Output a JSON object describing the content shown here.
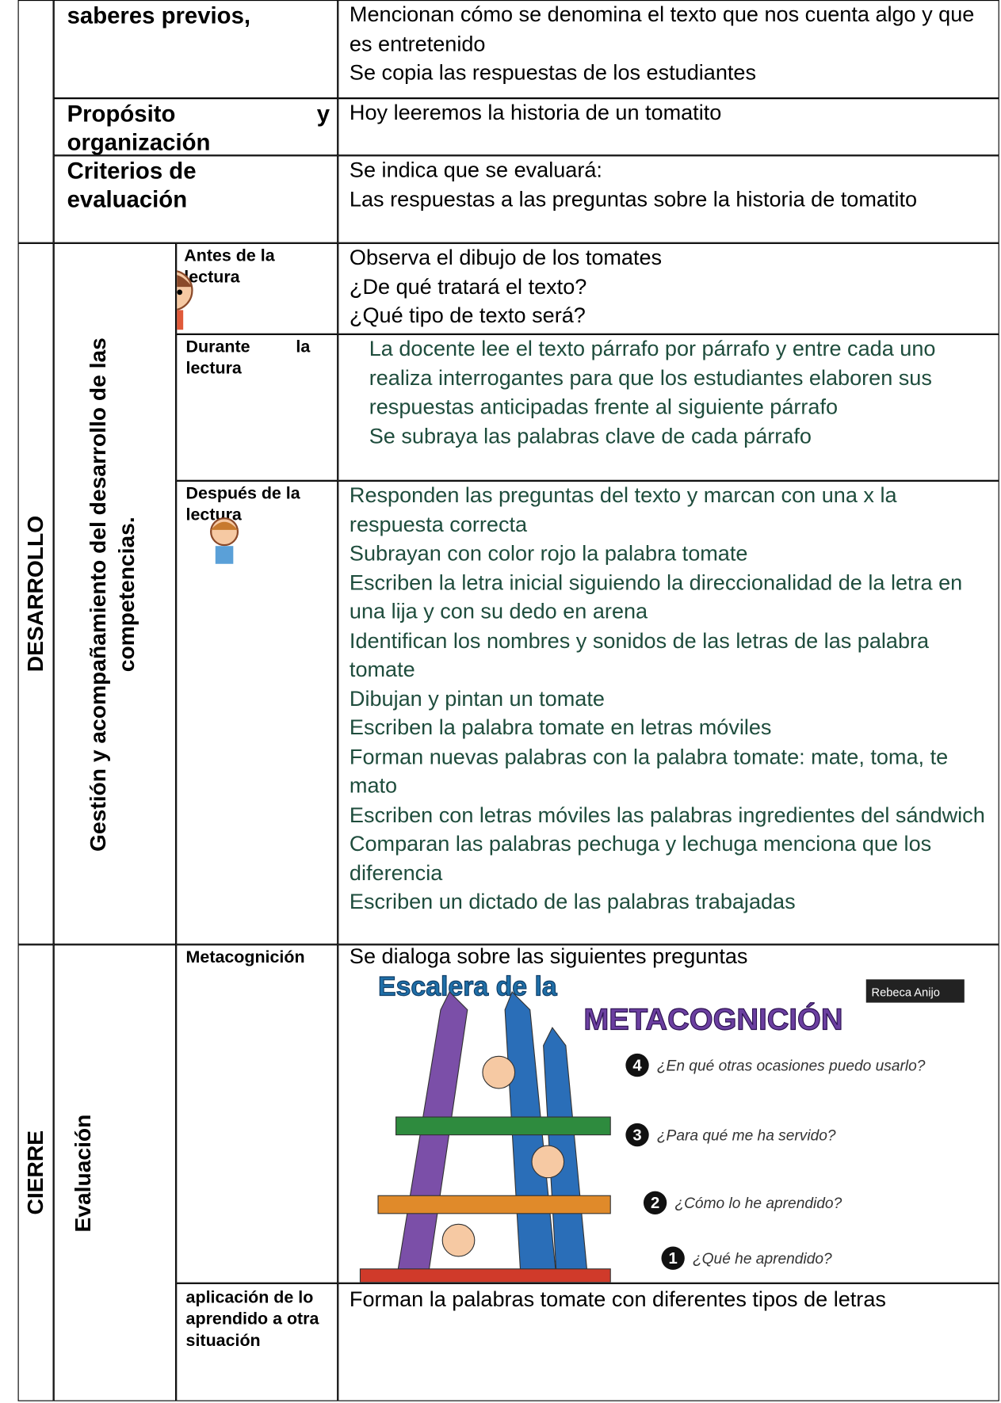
{
  "rows": [
    {
      "label": "saberes previos,",
      "content": [
        "Mencionan cómo se denomina el texto que nos cuenta algo y que es entretenido",
        "Se copia las respuestas de los estudiantes"
      ]
    },
    {
      "label": "Propósito y organización",
      "content": [
        "Hoy leeremos la historia de un tomatito"
      ]
    },
    {
      "label": "Criterios de evaluación",
      "content": [
        "Se indica que se evaluará:",
        "Las respuestas a las preguntas sobre la historia de tomatito"
      ]
    }
  ],
  "desarrollo": {
    "phase": "DESARROLLO",
    "process": "Gestión y acompañamiento del desarrollo de las competencias.",
    "steps": [
      {
        "label": "Antes de la lectura",
        "content": [
          "Observa el dibujo de los tomates",
          "¿De qué tratará el texto?",
          "¿Qué tipo de texto será?"
        ]
      },
      {
        "label": "Durante la lectura",
        "content": [
          "La docente lee el texto párrafo por párrafo y entre cada uno realiza interrogantes para que los estudiantes elaboren sus respuestas anticipadas frente al siguiente párrafo",
          "Se subraya las palabras clave de cada párrafo"
        ]
      },
      {
        "label": "Después de la lectura",
        "content": [
          "Responden las preguntas del texto y marcan con una x la respuesta correcta",
          "Subrayan con color rojo la palabra tomate",
          "Escriben la letra inicial siguiendo la direccionalidad de la letra en una lija y con su dedo en arena",
          "Identifican los nombres y sonidos de las letras de las palabra tomate",
          "Dibujan y pintan un tomate",
          "Escriben la palabra tomate en letras móviles",
          "Forman nuevas palabras con la palabra tomate: mate, toma, te mato",
          "Escriben con letras móviles las palabras ingredientes del sándwich",
          "Comparan las palabras pechuga y lechuga menciona que los diferencia",
          "Escriben un dictado de las palabras trabajadas"
        ]
      }
    ]
  },
  "cierre": {
    "phase": "CIERRE",
    "process": "Evaluación",
    "steps": [
      {
        "label": "Metacognición",
        "content": [
          "Se dialoga sobre las siguientes preguntas"
        ]
      },
      {
        "label": "aplicación de lo aprendido a otra situación",
        "content": [
          "Forman la palabras tomate con diferentes tipos de letras"
        ]
      }
    ]
  },
  "figure": {
    "title": "Escalera de la",
    "subtitle": "METACOGNICIÓN",
    "credit": "Rebeca Anijo",
    "questions": [
      {
        "number": 4,
        "text": "¿En qué otras ocasiones puedo usarlo?"
      },
      {
        "number": 3,
        "text": "¿Para qué me ha servido?"
      },
      {
        "number": 2,
        "text": "¿Cómo lo he aprendido?"
      },
      {
        "number": 1,
        "text": "¿Qué he aprendido?"
      }
    ]
  }
}
